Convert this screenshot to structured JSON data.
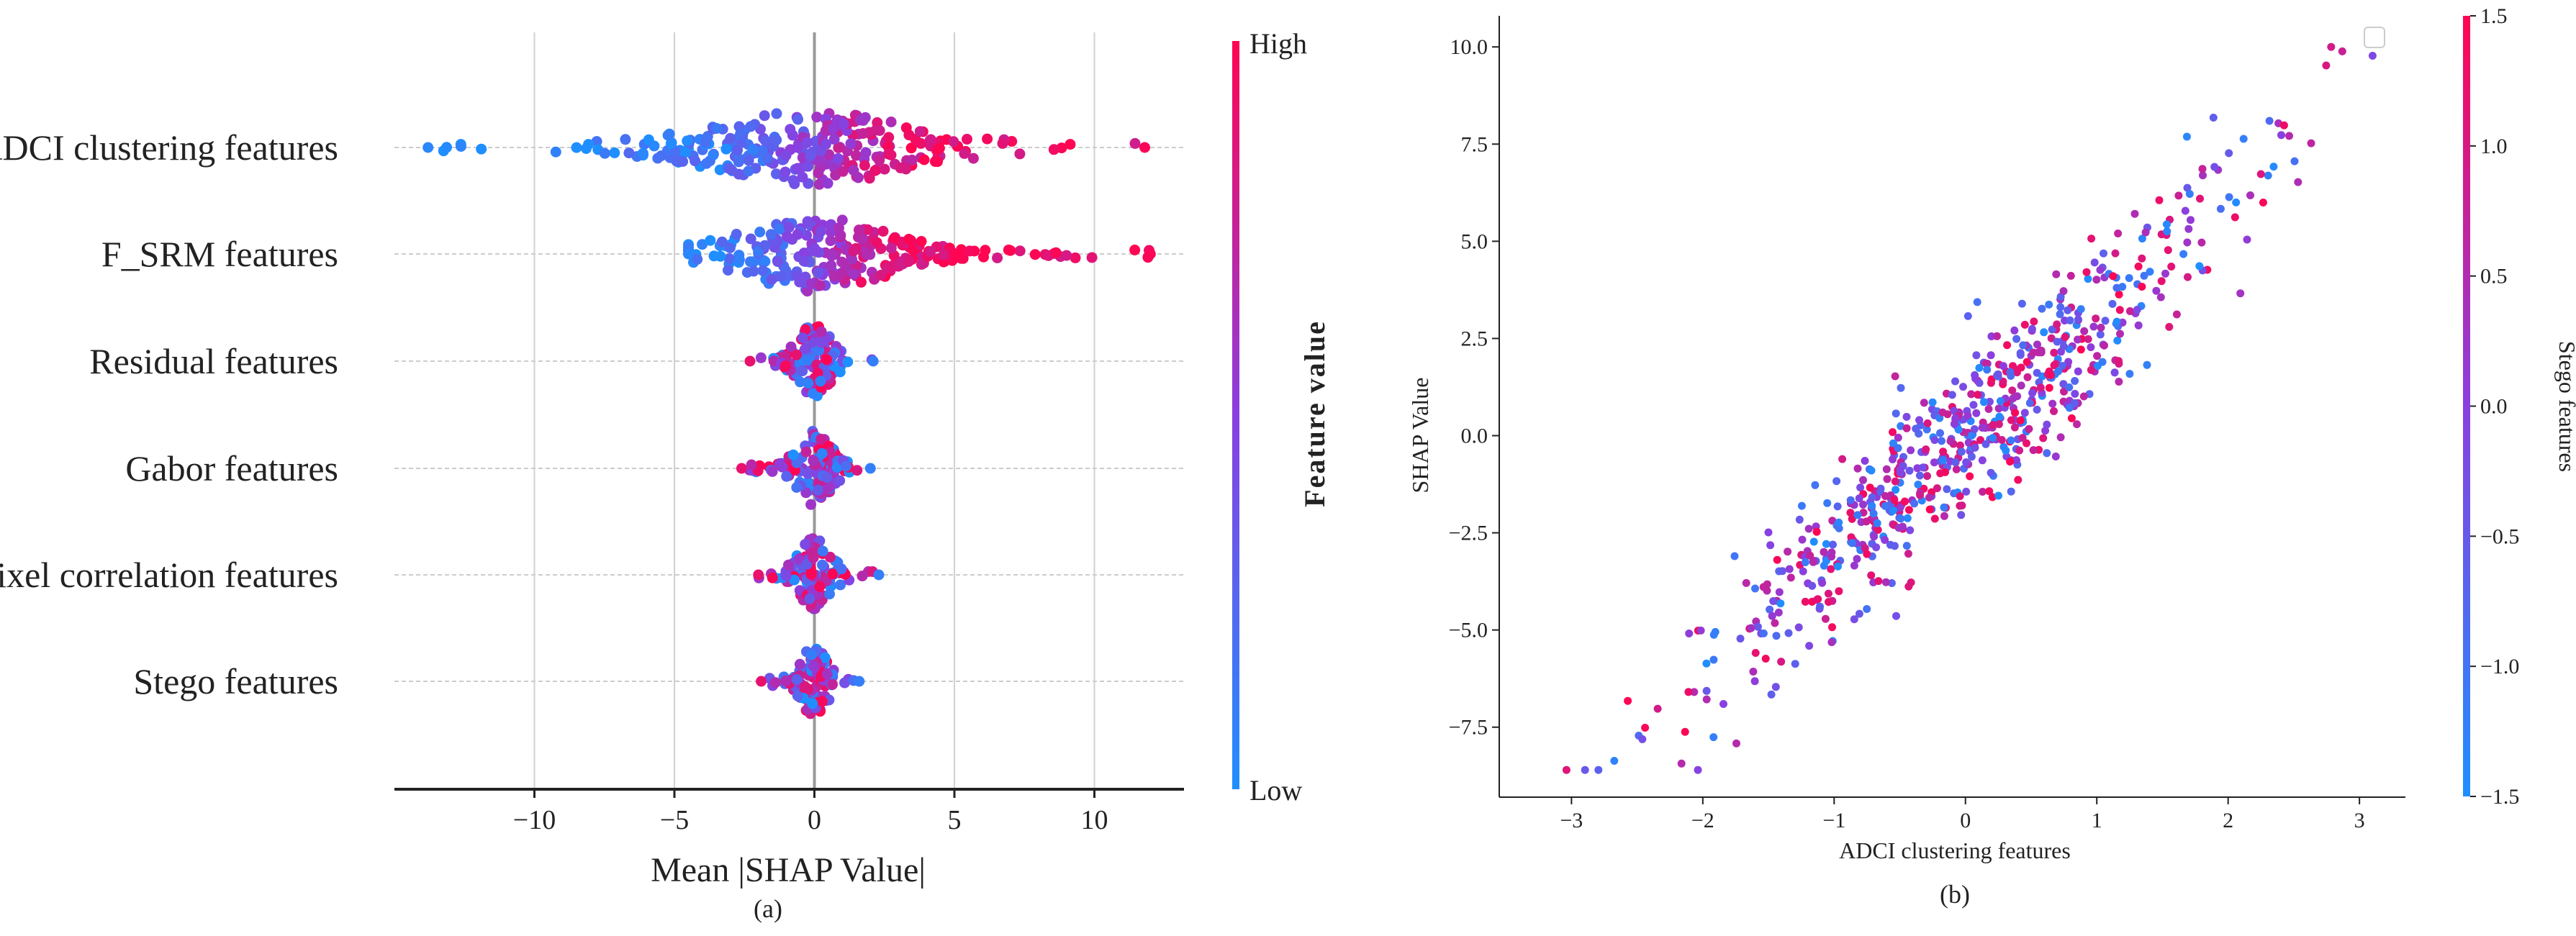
{
  "colors": {
    "low": "#1f8fff",
    "mid": "#8a3fe0",
    "high": "#ff0552",
    "axis": "#222222",
    "grid": "#d0d0d0",
    "zero_line": "#999999"
  },
  "chart_data": [
    {
      "type": "scatter",
      "subtype": "beeswarm",
      "caption": "(a)",
      "xlabel": "Mean |SHAP Value|",
      "xlim": [
        -15,
        13.2
      ],
      "xticks": [
        -10,
        -5,
        0,
        5,
        10
      ],
      "xtick_labels": [
        "−10",
        "−5",
        "0",
        "5",
        "10"
      ],
      "categories": [
        "ADCI clustering features",
        "F_SRM features",
        "Residual features",
        "Gabor features",
        "Pixel correlation features",
        "Stego features"
      ],
      "series": [
        {
          "category": "ADCI clustering features",
          "range": [
            -13.8,
            11.8
          ],
          "spread": 3.6,
          "count": 280
        },
        {
          "category": "F_SRM features",
          "range": [
            -4.5,
            12.0
          ],
          "spread": 2.6,
          "count": 260
        },
        {
          "category": "Residual features",
          "range": [
            -2.3,
            2.1
          ],
          "spread": 0.6,
          "count": 120
        },
        {
          "category": "Gabor features",
          "range": [
            -2.6,
            2.0
          ],
          "spread": 0.6,
          "count": 120
        },
        {
          "category": "Pixel correlation features",
          "range": [
            -2.0,
            2.3
          ],
          "spread": 0.55,
          "count": 110
        },
        {
          "category": "Stego features",
          "range": [
            -1.9,
            1.6
          ],
          "spread": 0.45,
          "count": 100
        }
      ],
      "colorbar": {
        "label": "Feature value",
        "low_label": "Low",
        "high_label": "High"
      },
      "grid": "vertical"
    },
    {
      "type": "scatter",
      "caption": "(b)",
      "xlabel": "ADCI clustering features",
      "ylabel": "SHAP Value",
      "xlim": [
        -3.55,
        3.35
      ],
      "ylim": [
        -9.3,
        10.8
      ],
      "xticks": [
        -3,
        -2,
        -1,
        0,
        1,
        2,
        3
      ],
      "xtick_labels": [
        "−3",
        "−2",
        "−1",
        "0",
        "1",
        "2",
        "3"
      ],
      "yticks": [
        -7.5,
        -5.0,
        -2.5,
        0.0,
        2.5,
        5.0,
        7.5,
        10.0
      ],
      "ytick_labels": [
        "−7.5",
        "−5.0",
        "−2.5",
        "0.0",
        "2.5",
        "5.0",
        "7.5",
        "10.0"
      ],
      "trend": {
        "slope": 3.0,
        "intercept": 0.0,
        "noise_sd": 1.1,
        "x_mean": 0.0,
        "x_sd": 1.0
      },
      "point_count": 700,
      "colorbar": {
        "label": "Stego features",
        "range": [
          -1.5,
          1.5
        ],
        "ticks": [
          -1.5,
          -1.0,
          -0.5,
          0.0,
          0.5,
          1.0,
          1.5
        ],
        "tick_labels": [
          "−1.5",
          "−1.0",
          "−0.5",
          "0.0",
          "0.5",
          "1.0",
          "1.5"
        ]
      },
      "legend": "top-right, empty"
    }
  ]
}
